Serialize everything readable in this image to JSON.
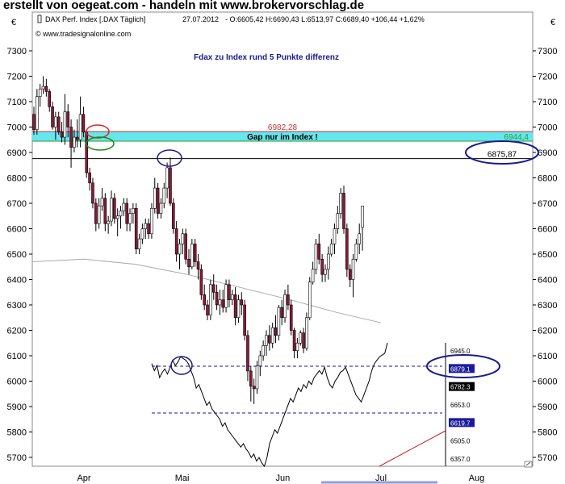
{
  "banner": "erstellt von oegeat.com - handeln mit www.brokervorschlag.de",
  "chart_data": {
    "type": "candlestick",
    "header": {
      "instrument": "DAX Perf. Index [.DAX  Täglich]",
      "date": "27.07.2012",
      "quote": "- O:6605,42 H:6690,43 L:6513,97 C:6689,40 +106,44 +1,62%",
      "quote_color": "#2e9c2e"
    },
    "source": "© www.tradesignalonline.com",
    "currency_symbol": "€",
    "title": "Fdax zu Index rund 5 Punkte differenz",
    "y_axis": {
      "min": 5650,
      "max": 7350,
      "ticks": [
        5700,
        5800,
        5900,
        6000,
        6100,
        6200,
        6300,
        6400,
        6500,
        6600,
        6700,
        6800,
        6900,
        7000,
        7100,
        7200,
        7300
      ]
    },
    "x_axis": {
      "labels": [
        {
          "label": "Apr",
          "day": 20
        },
        {
          "label": "Mai",
          "day": 58
        },
        {
          "label": "Jun",
          "day": 97
        },
        {
          "label": "Jul",
          "day": 135
        },
        {
          "label": "Aug",
          "day": 172
        }
      ]
    },
    "candles": [
      {
        "o": 7050,
        "h": 7080,
        "l": 6970,
        "c": 6990
      },
      {
        "o": 6990,
        "h": 7150,
        "l": 6970,
        "c": 7120
      },
      {
        "o": 7120,
        "h": 7170,
        "l": 7080,
        "c": 7150
      },
      {
        "o": 7150,
        "h": 7200,
        "l": 7130,
        "c": 7160
      },
      {
        "o": 7160,
        "h": 7190,
        "l": 7120,
        "c": 7140
      },
      {
        "o": 7140,
        "h": 7150,
        "l": 7060,
        "c": 7080
      },
      {
        "o": 7080,
        "h": 7100,
        "l": 6990,
        "c": 7000
      },
      {
        "o": 7000,
        "h": 7060,
        "l": 6950,
        "c": 7040
      },
      {
        "o": 7040,
        "h": 7060,
        "l": 6970,
        "c": 6980
      },
      {
        "o": 6980,
        "h": 7020,
        "l": 6940,
        "c": 6960
      },
      {
        "o": 6960,
        "h": 7130,
        "l": 6930,
        "c": 7060
      },
      {
        "o": 7060,
        "h": 7090,
        "l": 6960,
        "c": 7000
      },
      {
        "o": 7000,
        "h": 7030,
        "l": 6840,
        "c": 6920
      },
      {
        "o": 6920,
        "h": 6990,
        "l": 6900,
        "c": 6960
      },
      {
        "o": 6960,
        "h": 7030,
        "l": 6920,
        "c": 6950
      },
      {
        "o": 6950,
        "h": 7120,
        "l": 6920,
        "c": 7050
      },
      {
        "o": 7050,
        "h": 7080,
        "l": 6960,
        "c": 6980
      },
      {
        "o": 6980,
        "h": 6990,
        "l": 6800,
        "c": 6820
      },
      {
        "o": 6820,
        "h": 6840,
        "l": 6750,
        "c": 6780
      },
      {
        "o": 6780,
        "h": 6800,
        "l": 6680,
        "c": 6700
      },
      {
        "o": 6700,
        "h": 6720,
        "l": 6590,
        "c": 6620
      },
      {
        "o": 6620,
        "h": 6720,
        "l": 6600,
        "c": 6690
      },
      {
        "o": 6690,
        "h": 6760,
        "l": 6670,
        "c": 6720
      },
      {
        "o": 6720,
        "h": 6740,
        "l": 6590,
        "c": 6620
      },
      {
        "o": 6620,
        "h": 6650,
        "l": 6580,
        "c": 6630
      },
      {
        "o": 6630,
        "h": 6750,
        "l": 6610,
        "c": 6720
      },
      {
        "o": 6720,
        "h": 6740,
        "l": 6620,
        "c": 6640
      },
      {
        "o": 6640,
        "h": 6680,
        "l": 6570,
        "c": 6650
      },
      {
        "o": 6650,
        "h": 6690,
        "l": 6600,
        "c": 6670
      },
      {
        "o": 6670,
        "h": 6720,
        "l": 6650,
        "c": 6700
      },
      {
        "o": 6700,
        "h": 6720,
        "l": 6590,
        "c": 6620
      },
      {
        "o": 6620,
        "h": 6680,
        "l": 6590,
        "c": 6660
      },
      {
        "o": 6660,
        "h": 6700,
        "l": 6620,
        "c": 6680
      },
      {
        "o": 6680,
        "h": 6700,
        "l": 6500,
        "c": 6520
      },
      {
        "o": 6520,
        "h": 6580,
        "l": 6500,
        "c": 6560
      },
      {
        "o": 6560,
        "h": 6620,
        "l": 6540,
        "c": 6600
      },
      {
        "o": 6600,
        "h": 6640,
        "l": 6560,
        "c": 6620
      },
      {
        "o": 6620,
        "h": 6640,
        "l": 6560,
        "c": 6580
      },
      {
        "o": 6580,
        "h": 6700,
        "l": 6560,
        "c": 6680
      },
      {
        "o": 6680,
        "h": 6800,
        "l": 6660,
        "c": 6760
      },
      {
        "o": 6760,
        "h": 6780,
        "l": 6640,
        "c": 6660
      },
      {
        "o": 6660,
        "h": 6720,
        "l": 6640,
        "c": 6700
      },
      {
        "o": 6700,
        "h": 6780,
        "l": 6680,
        "c": 6760
      },
      {
        "o": 6760,
        "h": 6860,
        "l": 6720,
        "c": 6840
      },
      {
        "o": 6840,
        "h": 6880,
        "l": 6690,
        "c": 6700
      },
      {
        "o": 6700,
        "h": 6720,
        "l": 6580,
        "c": 6600
      },
      {
        "o": 6600,
        "h": 6630,
        "l": 6470,
        "c": 6500
      },
      {
        "o": 6500,
        "h": 6560,
        "l": 6440,
        "c": 6540
      },
      {
        "o": 6540,
        "h": 6600,
        "l": 6500,
        "c": 6580
      },
      {
        "o": 6580,
        "h": 6600,
        "l": 6460,
        "c": 6480
      },
      {
        "o": 6480,
        "h": 6520,
        "l": 6420,
        "c": 6450
      },
      {
        "o": 6450,
        "h": 6560,
        "l": 6440,
        "c": 6540
      },
      {
        "o": 6540,
        "h": 6560,
        "l": 6450,
        "c": 6470
      },
      {
        "o": 6470,
        "h": 6500,
        "l": 6400,
        "c": 6440
      },
      {
        "o": 6440,
        "h": 6460,
        "l": 6320,
        "c": 6340
      },
      {
        "o": 6340,
        "h": 6380,
        "l": 6280,
        "c": 6300
      },
      {
        "o": 6300,
        "h": 6320,
        "l": 6240,
        "c": 6260
      },
      {
        "o": 6260,
        "h": 6400,
        "l": 6240,
        "c": 6380
      },
      {
        "o": 6380,
        "h": 6420,
        "l": 6320,
        "c": 6350
      },
      {
        "o": 6350,
        "h": 6380,
        "l": 6280,
        "c": 6300
      },
      {
        "o": 6300,
        "h": 6360,
        "l": 6260,
        "c": 6320
      },
      {
        "o": 6320,
        "h": 6360,
        "l": 6270,
        "c": 6290
      },
      {
        "o": 6290,
        "h": 6400,
        "l": 6270,
        "c": 6380
      },
      {
        "o": 6380,
        "h": 6400,
        "l": 6290,
        "c": 6320
      },
      {
        "o": 6320,
        "h": 6360,
        "l": 6300,
        "c": 6340
      },
      {
        "o": 6340,
        "h": 6370,
        "l": 6220,
        "c": 6250
      },
      {
        "o": 6250,
        "h": 6340,
        "l": 6230,
        "c": 6320
      },
      {
        "o": 6320,
        "h": 6350,
        "l": 6260,
        "c": 6300
      },
      {
        "o": 6300,
        "h": 6320,
        "l": 6160,
        "c": 6180
      },
      {
        "o": 6180,
        "h": 6200,
        "l": 6000,
        "c": 6040
      },
      {
        "o": 6040,
        "h": 6060,
        "l": 5920,
        "c": 5980
      },
      {
        "o": 5980,
        "h": 6010,
        "l": 5910,
        "c": 5970
      },
      {
        "o": 5970,
        "h": 6080,
        "l": 5950,
        "c": 6060
      },
      {
        "o": 6060,
        "h": 6120,
        "l": 6020,
        "c": 6100
      },
      {
        "o": 6100,
        "h": 6160,
        "l": 6080,
        "c": 6140
      },
      {
        "o": 6140,
        "h": 6200,
        "l": 6100,
        "c": 6180
      },
      {
        "o": 6180,
        "h": 6220,
        "l": 6120,
        "c": 6150
      },
      {
        "o": 6150,
        "h": 6230,
        "l": 6130,
        "c": 6210
      },
      {
        "o": 6210,
        "h": 6260,
        "l": 6150,
        "c": 6180
      },
      {
        "o": 6180,
        "h": 6300,
        "l": 6160,
        "c": 6290
      },
      {
        "o": 6290,
        "h": 6320,
        "l": 6220,
        "c": 6250
      },
      {
        "o": 6250,
        "h": 6360,
        "l": 6230,
        "c": 6340
      },
      {
        "o": 6340,
        "h": 6380,
        "l": 6280,
        "c": 6300
      },
      {
        "o": 6300,
        "h": 6320,
        "l": 6180,
        "c": 6200
      },
      {
        "o": 6200,
        "h": 6210,
        "l": 6090,
        "c": 6120
      },
      {
        "o": 6120,
        "h": 6170,
        "l": 6090,
        "c": 6150
      },
      {
        "o": 6150,
        "h": 6200,
        "l": 6140,
        "c": 6190
      },
      {
        "o": 6190,
        "h": 6210,
        "l": 6110,
        "c": 6130
      },
      {
        "o": 6130,
        "h": 6270,
        "l": 6120,
        "c": 6250
      },
      {
        "o": 6250,
        "h": 6410,
        "l": 6240,
        "c": 6390
      },
      {
        "o": 6390,
        "h": 6470,
        "l": 6380,
        "c": 6440
      },
      {
        "o": 6440,
        "h": 6560,
        "l": 6420,
        "c": 6540
      },
      {
        "o": 6540,
        "h": 6580,
        "l": 6460,
        "c": 6480
      },
      {
        "o": 6480,
        "h": 6500,
        "l": 6390,
        "c": 6420
      },
      {
        "o": 6420,
        "h": 6460,
        "l": 6390,
        "c": 6440
      },
      {
        "o": 6440,
        "h": 6530,
        "l": 6400,
        "c": 6500
      },
      {
        "o": 6500,
        "h": 6560,
        "l": 6490,
        "c": 6540
      },
      {
        "o": 6540,
        "h": 6620,
        "l": 6500,
        "c": 6600
      },
      {
        "o": 6600,
        "h": 6690,
        "l": 6580,
        "c": 6660
      },
      {
        "o": 6660,
        "h": 6760,
        "l": 6640,
        "c": 6740
      },
      {
        "o": 6740,
        "h": 6770,
        "l": 6580,
        "c": 6600
      },
      {
        "o": 6600,
        "h": 6620,
        "l": 6410,
        "c": 6440
      },
      {
        "o": 6440,
        "h": 6460,
        "l": 6370,
        "c": 6400
      },
      {
        "o": 6400,
        "h": 6500,
        "l": 6330,
        "c": 6480
      },
      {
        "o": 6480,
        "h": 6560,
        "l": 6470,
        "c": 6540
      },
      {
        "o": 6540,
        "h": 6620,
        "l": 6500,
        "c": 6580
      },
      {
        "o": 6605.42,
        "h": 6690.43,
        "l": 6513.97,
        "c": 6689.4
      }
    ],
    "candle_day_start": 0,
    "candle_day_step": 1.2,
    "moving_average": [
      {
        "day": 0,
        "value": 6470
      },
      {
        "day": 20,
        "value": 6480
      },
      {
        "day": 40,
        "value": 6460
      },
      {
        "day": 60,
        "value": 6420
      },
      {
        "day": 80,
        "value": 6370
      },
      {
        "day": 100,
        "value": 6320
      },
      {
        "day": 118,
        "value": 6270
      },
      {
        "day": 135,
        "value": 6230
      }
    ],
    "moving_average_color": "#aaaaaa",
    "levels": [
      {
        "value": 6982.28,
        "label": "6982,28",
        "color": "#cc3333"
      },
      {
        "value": 6944.4,
        "label": "6944,4",
        "color": "#2e9c2e"
      },
      {
        "value": 6875.87,
        "label": "6875,87",
        "color": "#000000"
      }
    ],
    "gap_zone": {
      "from": 6944.4,
      "to": 6982.28,
      "label": "Gap nur im Index !",
      "color": "#66e6ee"
    },
    "inset": {
      "labels": [
        "6945.0",
        "6879.1",
        "6782.3",
        "6653.0",
        "6619.7",
        "6505.0",
        "6357.0"
      ],
      "highlight": [
        "6879.1",
        "6619.7"
      ],
      "dark": [
        "6782.3"
      ]
    },
    "inset_line": {
      "days": [
        59,
        60,
        61,
        62,
        63,
        64,
        65,
        66,
        67,
        68,
        69,
        70,
        71,
        72,
        73,
        74,
        75,
        76,
        77,
        78,
        79,
        80,
        81,
        82,
        83,
        84,
        85,
        86,
        87,
        88,
        89,
        90,
        91,
        92,
        93,
        94,
        95,
        96,
        97,
        98,
        99,
        100,
        101,
        102,
        103,
        104,
        105,
        106,
        107,
        108,
        109,
        110,
        111,
        112,
        113,
        114,
        115,
        116,
        117,
        118,
        119,
        120,
        121,
        122,
        123,
        124,
        125,
        126,
        127,
        128,
        129,
        130,
        131,
        132,
        133,
        134,
        135,
        136,
        137,
        138,
        139,
        140,
        141,
        142,
        143,
        144,
        145,
        146,
        147,
        148,
        149
      ],
      "values": [
        6840,
        6800,
        6830,
        6760,
        6790,
        6810,
        6780,
        6820,
        6860,
        6830,
        6850,
        6880,
        6870,
        6860,
        6840,
        6800,
        6760,
        6700,
        6720,
        6680,
        6640,
        6600,
        6620,
        6580,
        6560,
        6540,
        6520,
        6480,
        6500,
        6460,
        6440,
        6420,
        6400,
        6380,
        6360,
        6380,
        6350,
        6330,
        6300,
        6320,
        6280,
        6300,
        6270,
        6250,
        6300,
        6380,
        6420,
        6460,
        6440,
        6480,
        6520,
        6560,
        6600,
        6640,
        6620,
        6660,
        6700,
        6680,
        6720,
        6700,
        6740,
        6720,
        6760,
        6780,
        6800,
        6780,
        6820,
        6760,
        6720,
        6700,
        6740,
        6760,
        6790,
        6800,
        6820,
        6780,
        6740,
        6700,
        6660,
        6640,
        6620,
        6660,
        6700,
        6740,
        6800,
        6840,
        6860,
        6880,
        6890,
        6900,
        6960
      ]
    },
    "grid": false,
    "legend": "none"
  }
}
